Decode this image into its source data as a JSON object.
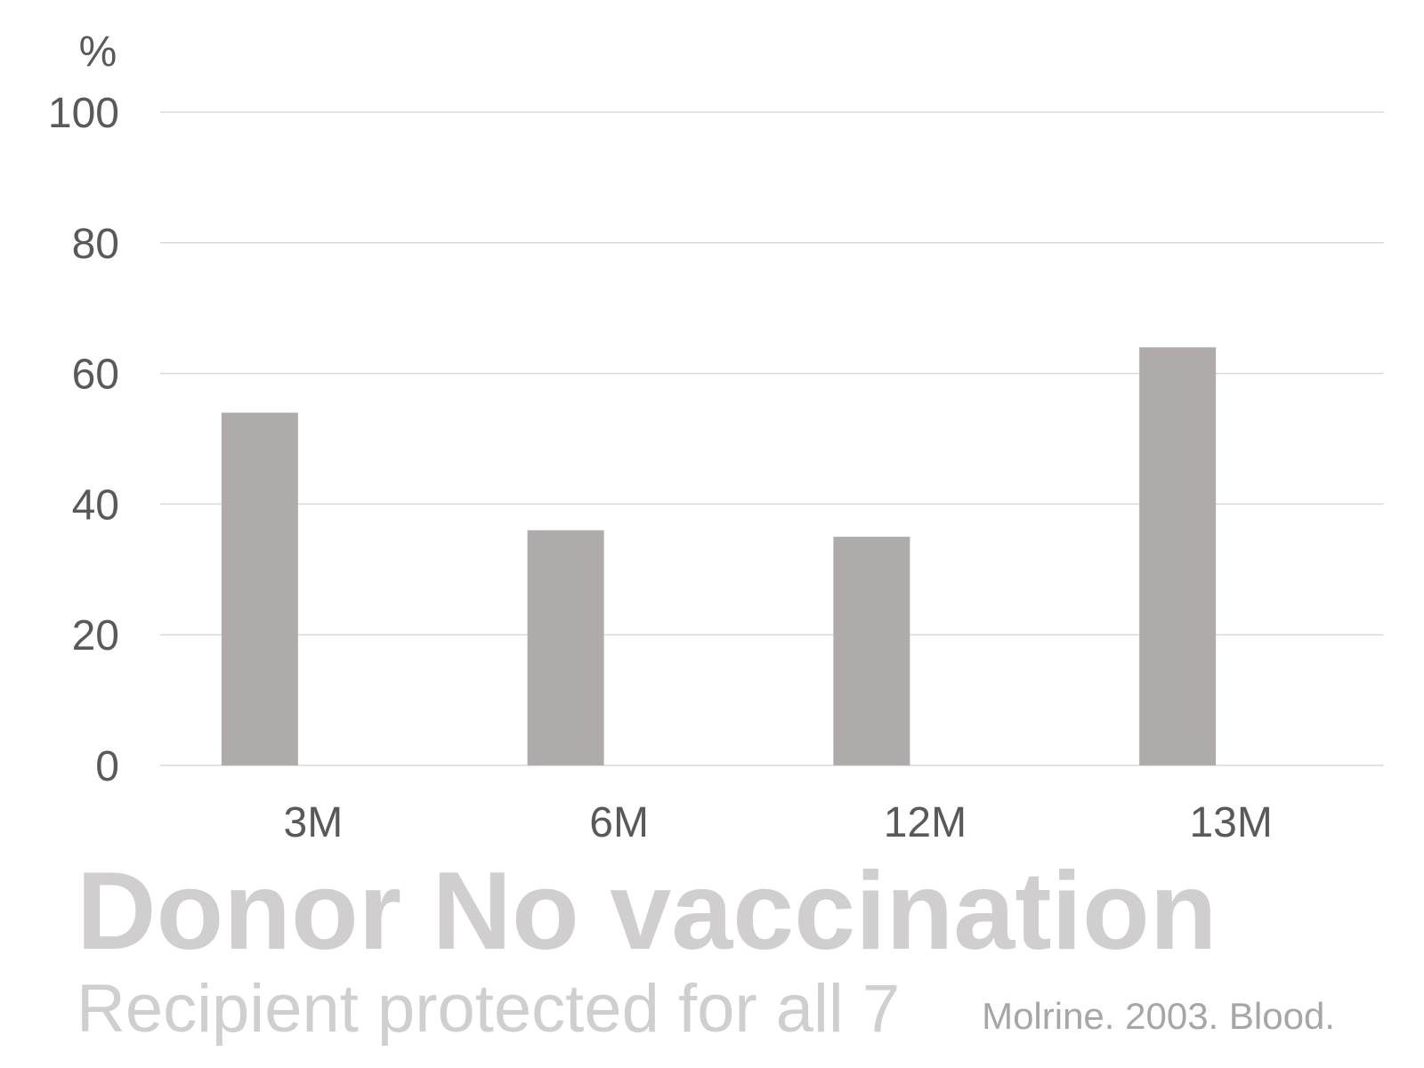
{
  "chart_data": {
    "type": "bar",
    "categories": [
      "3M",
      "6M",
      "12M",
      "13M"
    ],
    "values": [
      54,
      36,
      35,
      64
    ],
    "ylabel": "%",
    "ylim": [
      0,
      100
    ],
    "yticks": [
      0,
      20,
      40,
      60,
      80,
      100
    ],
    "grid": true,
    "bar_color": "#afabab",
    "grid_color": "#d9d9d9"
  },
  "title": "Donor No vaccination",
  "subtitle": "Recipient protected for all 7",
  "citation": "Molrine. 2003. Blood."
}
